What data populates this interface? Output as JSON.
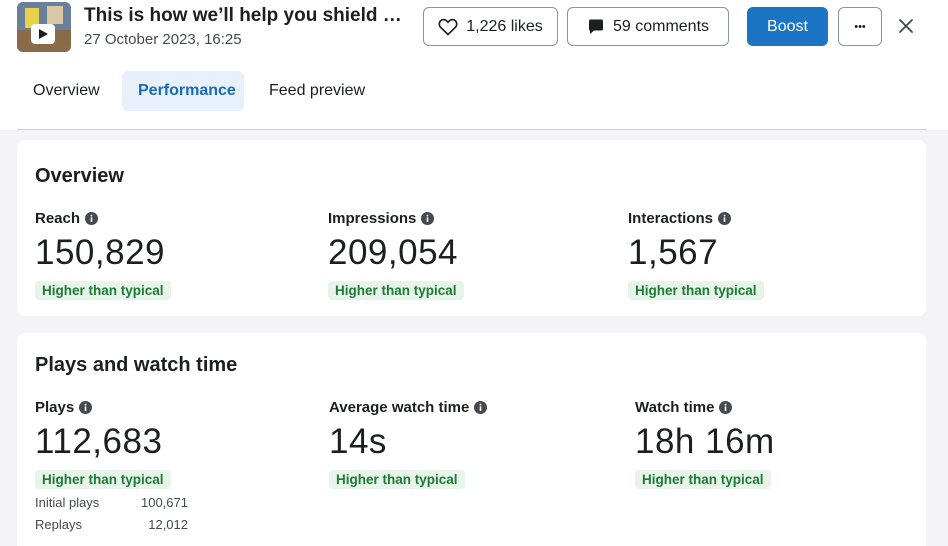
{
  "header": {
    "title": "This is how we’ll help you shield …",
    "date": "27 October 2023, 16:25",
    "likes_label": "1,226 likes",
    "comments_label": "59 comments",
    "boost_label": "Boost",
    "more_label": "•••"
  },
  "tabs": [
    {
      "label": "Overview"
    },
    {
      "label": "Performance"
    },
    {
      "label": "Feed preview"
    }
  ],
  "overview": {
    "title": "Overview",
    "metrics": [
      {
        "label": "Reach",
        "value": "150,829",
        "badge": "Higher than typical"
      },
      {
        "label": "Impressions",
        "value": "209,054",
        "badge": "Higher than typical"
      },
      {
        "label": "Interactions",
        "value": "1,567",
        "badge": "Higher than typical"
      }
    ]
  },
  "plays": {
    "title": "Plays and watch time",
    "metrics": [
      {
        "label": "Plays",
        "value": "112,683",
        "badge": "Higher than typical"
      },
      {
        "label": "Average watch time",
        "value": "14s",
        "badge": "Higher than typical"
      },
      {
        "label": "Watch time",
        "value": "18h 16m",
        "badge": "Higher than typical"
      }
    ],
    "breakdown": [
      {
        "label": "Initial plays",
        "value": "100,671"
      },
      {
        "label": "Replays",
        "value": "12,012"
      }
    ]
  },
  "colors": {
    "accent": "#1b74c4",
    "active_tab_bg": "#e7f0fb",
    "badge_bg": "#e6f4ea",
    "badge_text": "#1f7a35"
  }
}
